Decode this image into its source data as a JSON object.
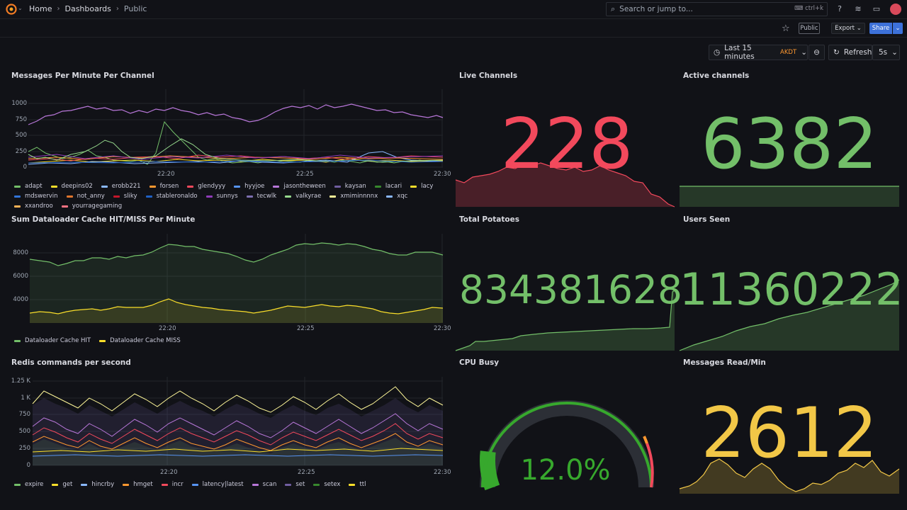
{
  "nav": {
    "breadcrumbs": [
      "Home",
      "Dashboards",
      "Public"
    ],
    "search_placeholder": "Search or jump to...",
    "search_shortcut": "ctrl+k"
  },
  "toolbar": {
    "public_label": "Public",
    "export_label": "Export",
    "share_label": "Share",
    "time_range": "Last 15 minutes",
    "timezone": "AKDT",
    "refresh_label": "Refresh",
    "refresh_interval": "5s"
  },
  "colors": {
    "accent": "#3d71d9",
    "red": "#f2495c",
    "green": "#73bf69",
    "yellow": "#fade2a",
    "orange": "#ff7383",
    "gold": "#f2c747"
  },
  "panels": {
    "messages_per_minute": {
      "title": "Messages Per Minute Per Channel",
      "y_ticks": [
        "1000",
        "750",
        "500",
        "250",
        "0"
      ],
      "x_ticks": [
        "22:20",
        "22:25",
        "22:30"
      ],
      "legend": [
        {
          "name": "adapt",
          "color": "#73bf69"
        },
        {
          "name": "deepins02",
          "color": "#fade2a"
        },
        {
          "name": "erobb221",
          "color": "#8ab8ff"
        },
        {
          "name": "forsen",
          "color": "#ff9830"
        },
        {
          "name": "glendyyy",
          "color": "#f2495c"
        },
        {
          "name": "hyyjoe",
          "color": "#5794f2"
        },
        {
          "name": "jasontheween",
          "color": "#b877d9"
        },
        {
          "name": "kaysan",
          "color": "#705da0"
        },
        {
          "name": "lacari",
          "color": "#37872d"
        },
        {
          "name": "lacy",
          "color": "#fade2a"
        },
        {
          "name": "mdswervin",
          "color": "#3274d9"
        },
        {
          "name": "not_anny",
          "color": "#e0752d"
        },
        {
          "name": "sliky",
          "color": "#c4162a"
        },
        {
          "name": "stableronaldo",
          "color": "#1f60c4"
        },
        {
          "name": "sunnys",
          "color": "#8f3bb8"
        },
        {
          "name": "tecwlk",
          "color": "#7c6fb0"
        },
        {
          "name": "valkyrae",
          "color": "#96d98d"
        },
        {
          "name": "xmiminnnnx",
          "color": "#fff899"
        },
        {
          "name": "xqc",
          "color": "#8ab8ff"
        },
        {
          "name": "xxandroo",
          "color": "#ffb357"
        },
        {
          "name": "yourragegaming",
          "color": "#ff7383"
        }
      ]
    },
    "live_channels": {
      "title": "Live Channels",
      "value": "228",
      "color": "#f2495c"
    },
    "active_channels": {
      "title": "Active channels",
      "value": "6382",
      "color": "#73bf69"
    },
    "dataloader": {
      "title": "Sum Dataloader Cache HIT/MISS Per Minute",
      "y_ticks": [
        "8000",
        "6000",
        "4000"
      ],
      "x_ticks": [
        "22:20",
        "22:25",
        "22:30"
      ],
      "legend": [
        {
          "name": "Dataloader Cache HIT",
          "color": "#73bf69"
        },
        {
          "name": "Dataloader Cache MISS",
          "color": "#fade2a"
        }
      ]
    },
    "total_potatoes": {
      "title": "Total Potatoes",
      "value": "834381628",
      "color": "#73bf69"
    },
    "users_seen": {
      "title": "Users Seen",
      "value": "11360222",
      "color": "#73bf69"
    },
    "redis": {
      "title": "Redis commands per second",
      "y_ticks": [
        "1.25 K",
        "1 K",
        "750",
        "500",
        "250",
        "0"
      ],
      "x_ticks": [
        "22:20",
        "22:25",
        "22:30"
      ],
      "legend": [
        {
          "name": "expire",
          "color": "#73bf69"
        },
        {
          "name": "get",
          "color": "#fade2a"
        },
        {
          "name": "hincrby",
          "color": "#8ab8ff"
        },
        {
          "name": "hmget",
          "color": "#ff9830"
        },
        {
          "name": "incr",
          "color": "#f2495c"
        },
        {
          "name": "latency|latest",
          "color": "#5794f2"
        },
        {
          "name": "scan",
          "color": "#b877d9"
        },
        {
          "name": "set",
          "color": "#705da0"
        },
        {
          "name": "setex",
          "color": "#37872d"
        },
        {
          "name": "ttl",
          "color": "#fade2a"
        }
      ]
    },
    "cpu_busy": {
      "title": "CPU Busy",
      "value": "12.0%",
      "percent": 12.0,
      "color": "#37a82d"
    },
    "messages_read": {
      "title": "Messages Read/Min",
      "value": "2612",
      "color": "#f2c747"
    }
  }
}
